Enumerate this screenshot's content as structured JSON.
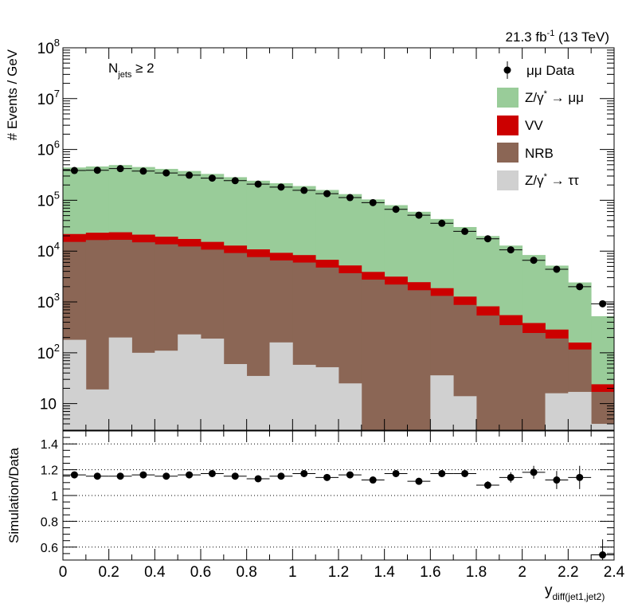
{
  "header": {
    "lumi_value": "21.3 fb",
    "lumi_exp": "-1",
    "energy": " (13 TeV)"
  },
  "selection": {
    "main": "N",
    "sub": "jets",
    "cut": " ≥ 2"
  },
  "legend": {
    "data": "μμ Data",
    "zmm_prefix": "Z/γ",
    "zmm_star": "*",
    "zmm_decay": " → μμ",
    "vv": "VV",
    "nrb": "NRB",
    "ztt_prefix": "Z/γ",
    "ztt_star": "*",
    "ztt_decay": " → ττ"
  },
  "axes": {
    "top_ylabel": "# Events / GeV",
    "bottom_ylabel": "Simulation/Data",
    "xlabel_main": "y",
    "xlabel_sub": "diff(jet1,jet2)"
  },
  "colors": {
    "zmm": "#99cc99",
    "vv": "#cc0000",
    "nrb": "#8b6655",
    "ztt": "#d0d0d0",
    "data": "#000000"
  },
  "chart_data": [
    {
      "type": "bar",
      "stacked": true,
      "log_y": true,
      "x_edges": [
        0,
        0.1,
        0.2,
        0.3,
        0.4,
        0.5,
        0.6,
        0.7,
        0.8,
        0.9,
        1.0,
        1.1,
        1.2,
        1.3,
        1.4,
        1.5,
        1.6,
        1.7,
        1.8,
        1.9,
        2.0,
        2.1,
        2.2,
        2.3,
        2.4
      ],
      "xlim": [
        0,
        2.4
      ],
      "ylim": [
        3,
        100000000
      ],
      "x_ticks": [
        "0",
        "0.2",
        "0.4",
        "0.6",
        "0.8",
        "1",
        "1.2",
        "1.4",
        "1.6",
        "1.8",
        "2",
        "2.2",
        "2.4"
      ],
      "y_ticks": [
        {
          "base": "10",
          "exp": ""
        },
        {
          "base": "10",
          "exp": "2"
        },
        {
          "base": "10",
          "exp": "3"
        },
        {
          "base": "10",
          "exp": "4"
        },
        {
          "base": "10",
          "exp": "5"
        },
        {
          "base": "10",
          "exp": "6"
        },
        {
          "base": "10",
          "exp": "7"
        },
        {
          "base": "10",
          "exp": "8"
        }
      ],
      "stack_order": [
        "Z/γ* → ττ",
        "NRB",
        "VV",
        "Z/γ* → μμ"
      ],
      "series": [
        {
          "name": "Z/γ* → ττ",
          "values": [
            180,
            19,
            200,
            100,
            110,
            230,
            190,
            60,
            35,
            160,
            58,
            52,
            25,
            0,
            0,
            0,
            36,
            14,
            0,
            0,
            0,
            16,
            17,
            4
          ]
        },
        {
          "name": "NRB",
          "values": [
            15000,
            16500,
            16500,
            14800,
            13500,
            12100,
            10500,
            9100,
            7600,
            6400,
            5900,
            4700,
            3650,
            2750,
            2200,
            1700,
            1280,
            860,
            540,
            350,
            245,
            175,
            99,
            13
          ]
        },
        {
          "name": "VV",
          "values": [
            6500,
            6500,
            6800,
            6200,
            5600,
            5000,
            4500,
            3700,
            3200,
            2700,
            2400,
            2000,
            1550,
            1150,
            950,
            750,
            550,
            400,
            280,
            200,
            140,
            95,
            43,
            7
          ]
        },
        {
          "name": "Z/γ* → μμ",
          "values": [
            420000,
            440000,
            470000,
            430000,
            395000,
            360000,
            315000,
            272000,
            232000,
            207000,
            182000,
            153000,
            127000,
            100000,
            77000,
            57000,
            41000,
            28500,
            19000,
            12300,
            8000,
            4900,
            2260,
            500
          ]
        }
      ],
      "data_points": {
        "name": "μμ Data",
        "x": [
          0.05,
          0.15,
          0.25,
          0.35,
          0.45,
          0.55,
          0.65,
          0.75,
          0.85,
          0.95,
          1.05,
          1.15,
          1.25,
          1.35,
          1.45,
          1.55,
          1.65,
          1.75,
          1.85,
          1.95,
          2.05,
          2.15,
          2.25,
          2.35
        ],
        "y": [
          385000,
          390000,
          420000,
          375000,
          345000,
          312000,
          273000,
          243000,
          208000,
          182000,
          157000,
          135000,
          113000,
          90000,
          66500,
          51000,
          35300,
          24500,
          17500,
          10600,
          6600,
          4400,
          2000,
          920
        ]
      }
    },
    {
      "type": "scatter",
      "xlim": [
        0,
        2.4
      ],
      "ylim": [
        0.5,
        1.5
      ],
      "y_ticks": [
        "0.6",
        "0.8",
        "1",
        "1.2",
        "1.4"
      ],
      "gridlines_y": [
        0.6,
        0.8,
        1.0,
        1.2,
        1.4
      ],
      "x": [
        0.05,
        0.15,
        0.25,
        0.35,
        0.45,
        0.55,
        0.65,
        0.75,
        0.85,
        0.95,
        1.05,
        1.15,
        1.25,
        1.35,
        1.45,
        1.55,
        1.65,
        1.75,
        1.85,
        1.95,
        2.05,
        2.15,
        2.25,
        2.35
      ],
      "y": [
        1.16,
        1.15,
        1.15,
        1.16,
        1.15,
        1.16,
        1.17,
        1.15,
        1.13,
        1.15,
        1.17,
        1.14,
        1.16,
        1.12,
        1.17,
        1.11,
        1.17,
        1.17,
        1.08,
        1.14,
        1.18,
        1.12,
        1.14,
        0.54
      ],
      "yerr": [
        0.005,
        0.005,
        0.005,
        0.005,
        0.005,
        0.005,
        0.005,
        0.005,
        0.005,
        0.005,
        0.006,
        0.006,
        0.006,
        0.007,
        0.008,
        0.009,
        0.012,
        0.015,
        0.03,
        0.04,
        0.05,
        0.07,
        0.09,
        0.12
      ]
    }
  ]
}
